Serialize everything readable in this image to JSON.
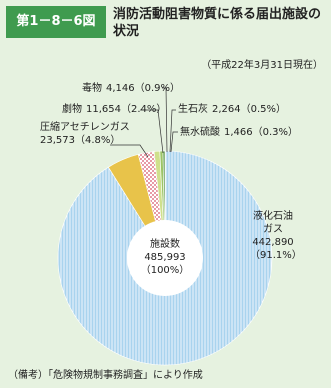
{
  "chart_data": {
    "type": "pie",
    "figure_label": "第1－8－6図",
    "title": "消防活動阻害物質に係る届出施設の状況",
    "subtitle": "（平成22年3月31日現在）",
    "categories": [
      "液化石油ガス",
      "圧縮アセチレンガス",
      "劇物",
      "毒物",
      "生石灰",
      "無水硫酸"
    ],
    "values": [
      442890,
      23573,
      11654,
      4146,
      2264,
      1466
    ],
    "value_labels": [
      "442,890（91.1%）",
      "23,573（4.8%）",
      "11,654（2.4%）",
      "4,146（0.9%）",
      "2,264（0.5%）",
      "1,466（0.3%）"
    ],
    "colors": [
      "#a9d3ee",
      "#e8c34a",
      "#e79aa6",
      "#cfe08c",
      "#9cc466",
      "#5f9b48"
    ],
    "patterns": [
      "stripes",
      null,
      "checker",
      null,
      null,
      null
    ],
    "center_label": "施設数",
    "total": "485,993",
    "total_percent": "（100%）",
    "note": "（備考）「危険物規制事務調査」により作成"
  }
}
